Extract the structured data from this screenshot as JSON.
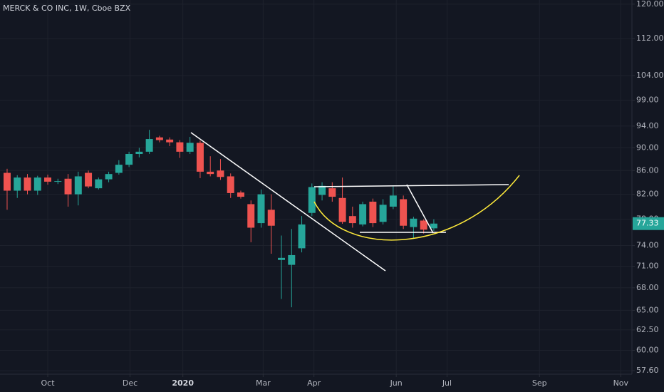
{
  "chart_data": {
    "type": "candlestick",
    "title": "MERCK & CO INC, 1W, Cboe BZX",
    "log_scale": true,
    "grid": true,
    "up_color": "#26a69a",
    "down_color": "#ef5350",
    "x": [
      0,
      1,
      2,
      3,
      4,
      5,
      6,
      7,
      8,
      9,
      10,
      11,
      12,
      13,
      14,
      15,
      16,
      17,
      18,
      19,
      20,
      21,
      22,
      23,
      24,
      25,
      26,
      27,
      28,
      29,
      30,
      31,
      32,
      33,
      34,
      35,
      36,
      37,
      38,
      39,
      40,
      41,
      42
    ],
    "open": [
      85.6,
      82.6,
      84.8,
      82.6,
      84.8,
      84.1,
      84.6,
      82.0,
      85.6,
      83.0,
      84.5,
      85.6,
      87.0,
      88.9,
      89.3,
      91.9,
      91.5,
      91.0,
      89.3,
      90.9,
      85.8,
      86.0,
      85.0,
      82.3,
      80.4,
      77.4,
      79.5,
      71.9,
      71.2,
      73.6,
      79.0,
      81.9,
      83.0,
      81.4,
      78.5,
      77.2,
      80.8,
      77.6,
      80.0,
      81.2,
      76.8,
      77.8,
      76.6
    ],
    "high": [
      86.3,
      85.2,
      85.4,
      85.1,
      85.3,
      84.6,
      85.4,
      85.8,
      86.0,
      84.8,
      85.8,
      87.8,
      89.3,
      90.0,
      93.3,
      92.2,
      91.9,
      91.4,
      92.0,
      91.3,
      88.5,
      88.0,
      85.5,
      82.6,
      81.0,
      82.8,
      82.0,
      75.5,
      76.5,
      78.5,
      83.8,
      84.0,
      84.0,
      84.8,
      80.0,
      80.8,
      81.3,
      81.2,
      83.3,
      81.8,
      78.4,
      78.0,
      78.0
    ],
    "low": [
      79.5,
      81.4,
      82.0,
      81.9,
      83.6,
      83.7,
      80.0,
      80.2,
      83.0,
      82.8,
      84.0,
      85.3,
      86.6,
      88.3,
      88.9,
      91.0,
      90.3,
      88.2,
      88.9,
      84.7,
      85.0,
      84.4,
      81.4,
      81.3,
      74.5,
      76.7,
      72.8,
      66.5,
      65.4,
      73.0,
      78.5,
      81.0,
      80.8,
      77.3,
      76.7,
      76.9,
      76.8,
      77.2,
      79.6,
      76.5,
      75.0,
      75.8,
      76.2
    ],
    "close": [
      82.6,
      84.8,
      82.6,
      84.8,
      84.1,
      84.2,
      82.0,
      85.0,
      83.3,
      84.5,
      85.4,
      87.0,
      88.9,
      89.3,
      91.6,
      91.4,
      91.0,
      89.3,
      90.9,
      85.8,
      85.4,
      84.9,
      82.2,
      81.6,
      76.7,
      82.0,
      77.0,
      72.2,
      72.6,
      77.2,
      83.2,
      83.4,
      81.6,
      77.6,
      77.4,
      80.4,
      77.4,
      80.3,
      81.8,
      77.0,
      78.1,
      76.4,
      77.33
    ],
    "last_price": 77.33,
    "xlim": [
      -0.7,
      61.5
    ],
    "xticks": [
      {
        "value": 4,
        "label": "Oct"
      },
      {
        "value": 12.1,
        "label": "Dec"
      },
      {
        "value": 17.3,
        "label": "2020"
      },
      {
        "value": 25.2,
        "label": "Mar"
      },
      {
        "value": 30.2,
        "label": "Apr"
      },
      {
        "value": 38.3,
        "label": "Jun"
      },
      {
        "value": 43.3,
        "label": "Jul"
      },
      {
        "value": 52.4,
        "label": "Sep"
      },
      {
        "value": 60.4,
        "label": "Nov"
      }
    ],
    "ylim": [
      57.2,
      121
    ],
    "yticks": [
      {
        "value": 120,
        "label": "120.00"
      },
      {
        "value": 112,
        "label": "112.00"
      },
      {
        "value": 104,
        "label": "104.00"
      },
      {
        "value": 99,
        "label": "99.00"
      },
      {
        "value": 94,
        "label": "94.00"
      },
      {
        "value": 90,
        "label": "90.00"
      },
      {
        "value": 86,
        "label": "86.00"
      },
      {
        "value": 82,
        "label": "82.00"
      },
      {
        "value": 78,
        "label": "78.00"
      },
      {
        "value": 74,
        "label": "74.00"
      },
      {
        "value": 71,
        "label": "71.00"
      },
      {
        "value": 68,
        "label": "68.00"
      },
      {
        "value": 65,
        "label": "65.00"
      },
      {
        "value": 62.5,
        "label": "62.50"
      },
      {
        "value": 60,
        "label": "60.00"
      },
      {
        "value": 57.6,
        "label": "57.60"
      }
    ]
  }
}
